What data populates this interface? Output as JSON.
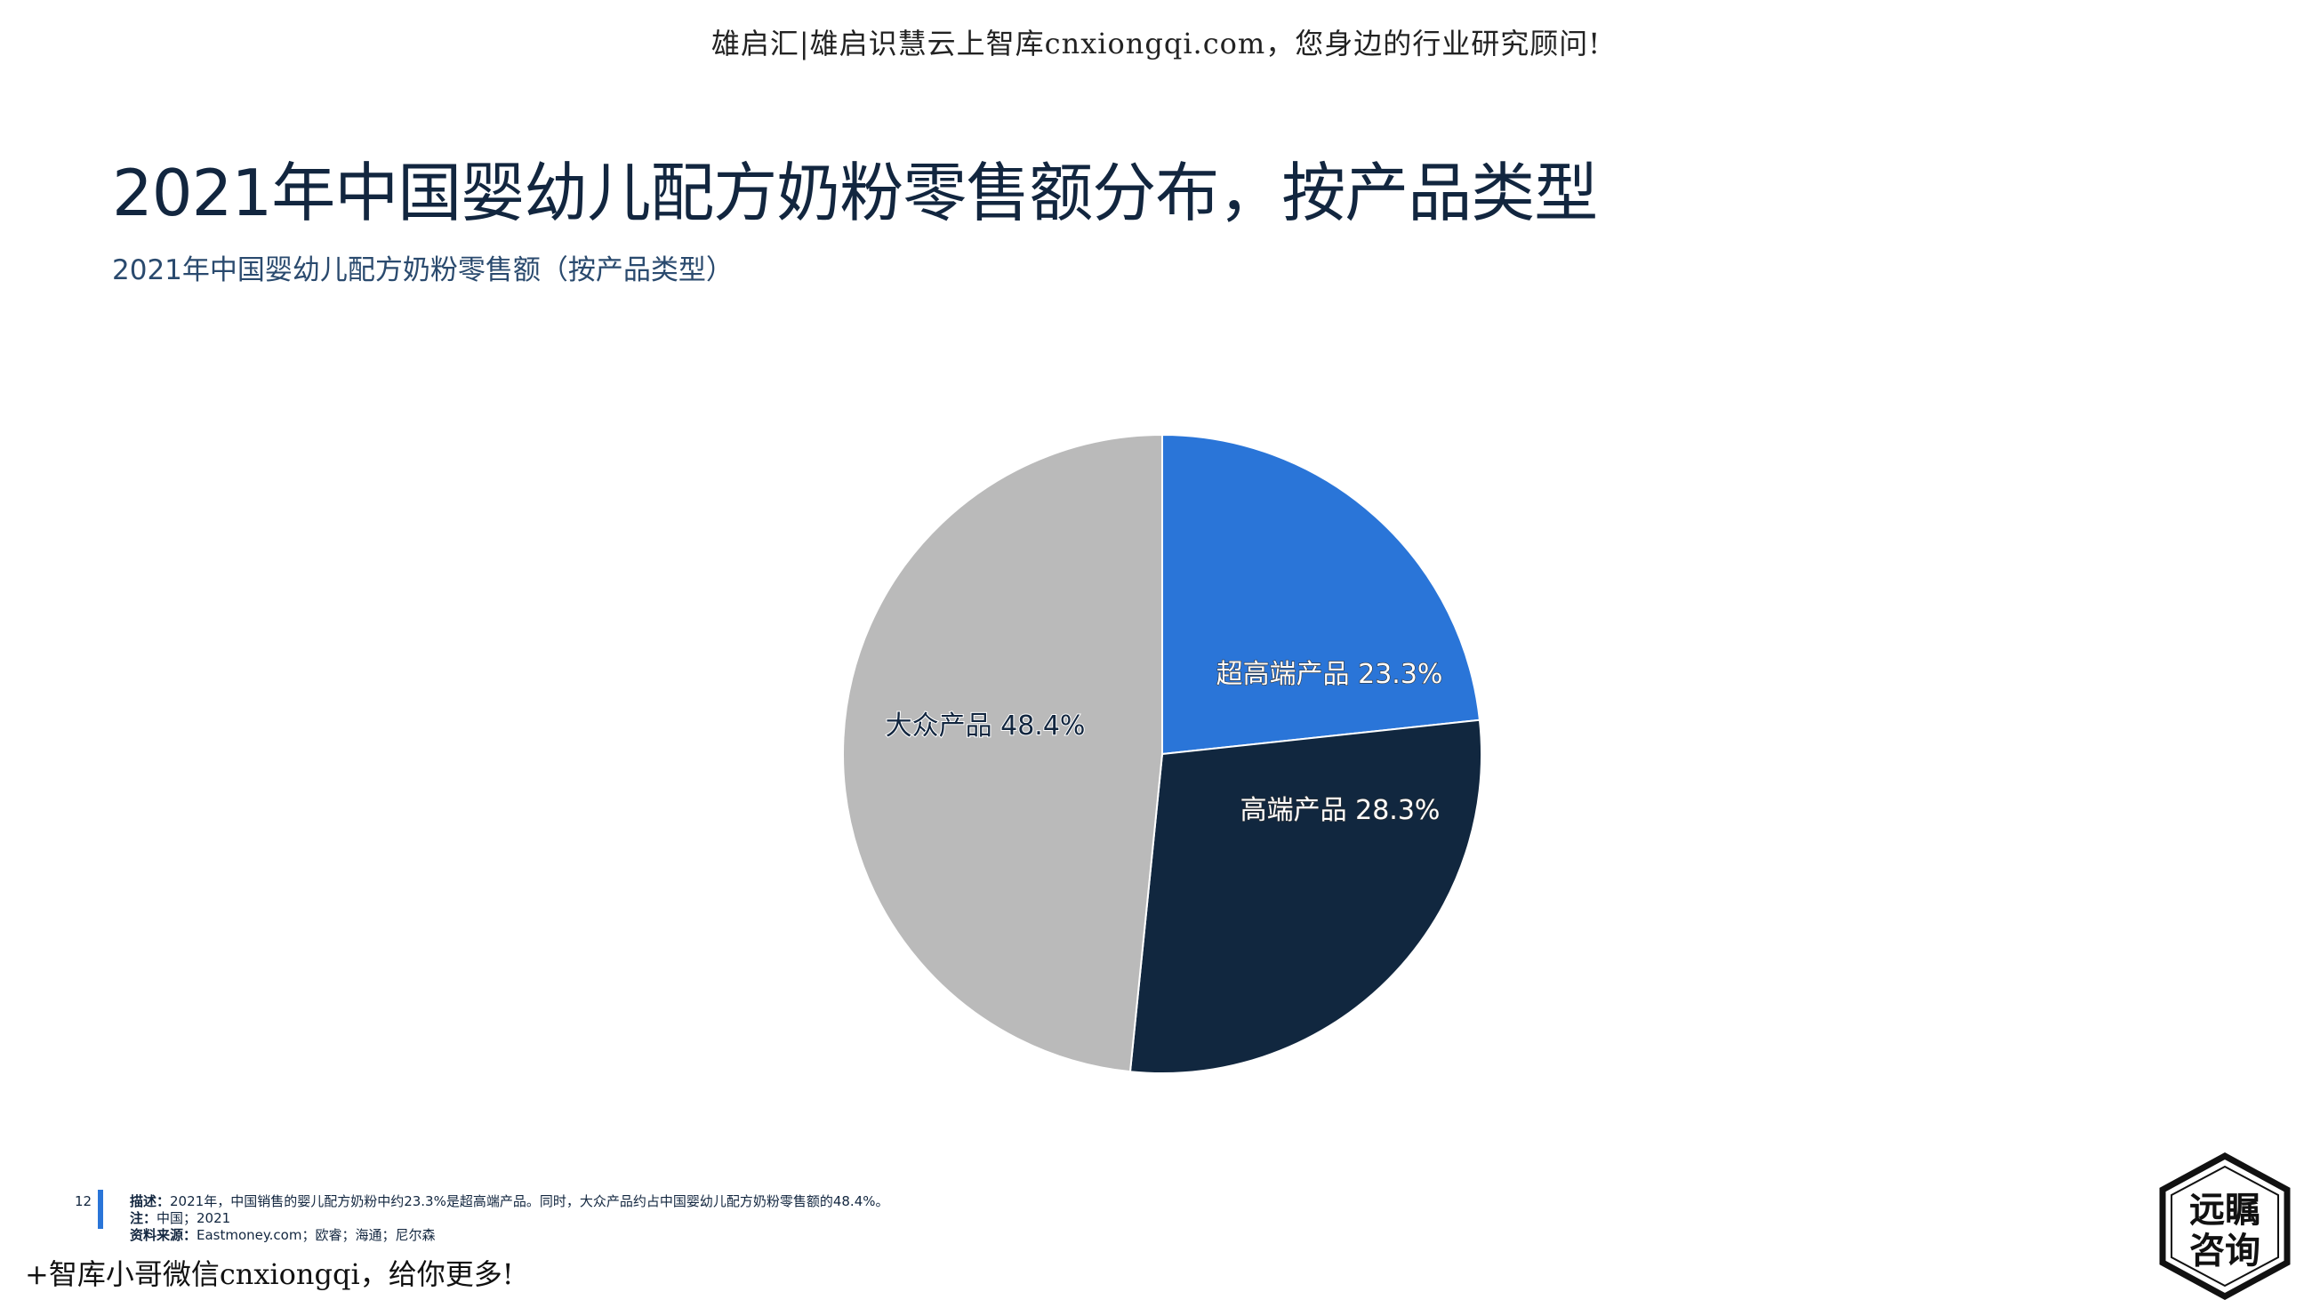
{
  "watermark": {
    "top": "雄启汇|雄启识慧云上智库cnxiongqi.com，您身边的行业研究顾问!",
    "bottom": "+智库小哥微信cnxiongqi，给你更多!"
  },
  "header": {
    "title": "2021年中国婴幼儿配方奶粉零售额分布，按产品类型",
    "subtitle": "2021年中国婴幼儿配方奶粉零售额（按产品类型）"
  },
  "chart_data": {
    "type": "pie",
    "title": "",
    "start_angle": "top, clockwise",
    "slices": [
      {
        "label": "超高端产品",
        "value": 23.3,
        "display": "超高端产品 23.3%",
        "color": "#2a75d8"
      },
      {
        "label": "高端产品",
        "value": 28.3,
        "display": "高端产品 28.3%",
        "color": "#11273f"
      },
      {
        "label": "大众产品",
        "value": 48.4,
        "display": "大众产品 48.4%",
        "color": "#bababa"
      }
    ]
  },
  "footer": {
    "page_number": "12",
    "description_label": "描述：",
    "description": "2021年，中国销售的婴儿配方奶粉中约23.3%是超高端产品。同时，大众产品约占中国婴幼儿配方奶粉零售额的48.4%。",
    "note_label": "注：",
    "note": "中国；2021",
    "source_label": "资料来源：",
    "source": "Eastmoney.com；欧睿；海通；尼尔森"
  },
  "logo": {
    "line1": "远瞩",
    "line2": "咨询"
  },
  "colors": {
    "accent": "#2a75d8",
    "navy": "#11273f",
    "gray": "#bababa"
  }
}
